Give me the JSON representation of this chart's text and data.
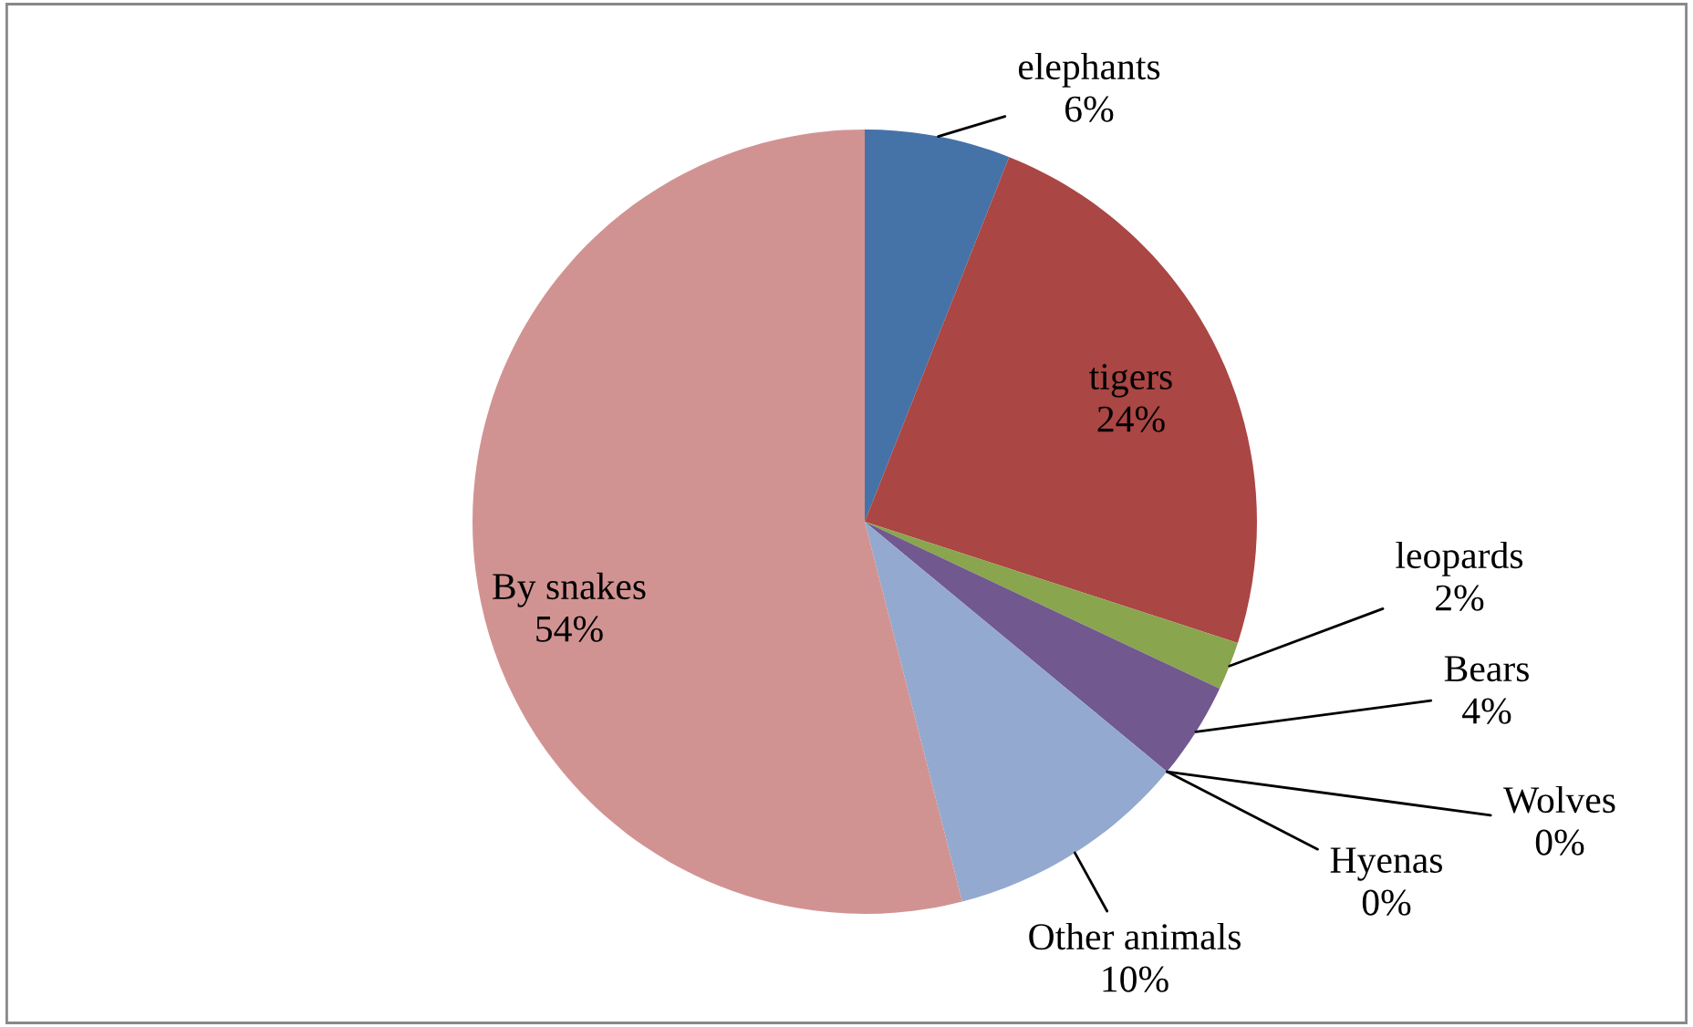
{
  "chart_data": {
    "type": "pie",
    "categories": [
      "elephants",
      "tigers",
      "leopards",
      "Bears",
      "Wolves",
      "Hyenas",
      "Other animals",
      "By snakes"
    ],
    "values": [
      6,
      24,
      2,
      4,
      0,
      0,
      10,
      54
    ],
    "value_labels": [
      "6%",
      "24%",
      "2%",
      "4%",
      "0%",
      "0%",
      "10%",
      "54%"
    ],
    "colors": [
      "#4572a7",
      "#aa4643",
      "#89a54e",
      "#71588f",
      "#4198af",
      "#db843d",
      "#93a9cf",
      "#d19392"
    ],
    "legend": false
  }
}
